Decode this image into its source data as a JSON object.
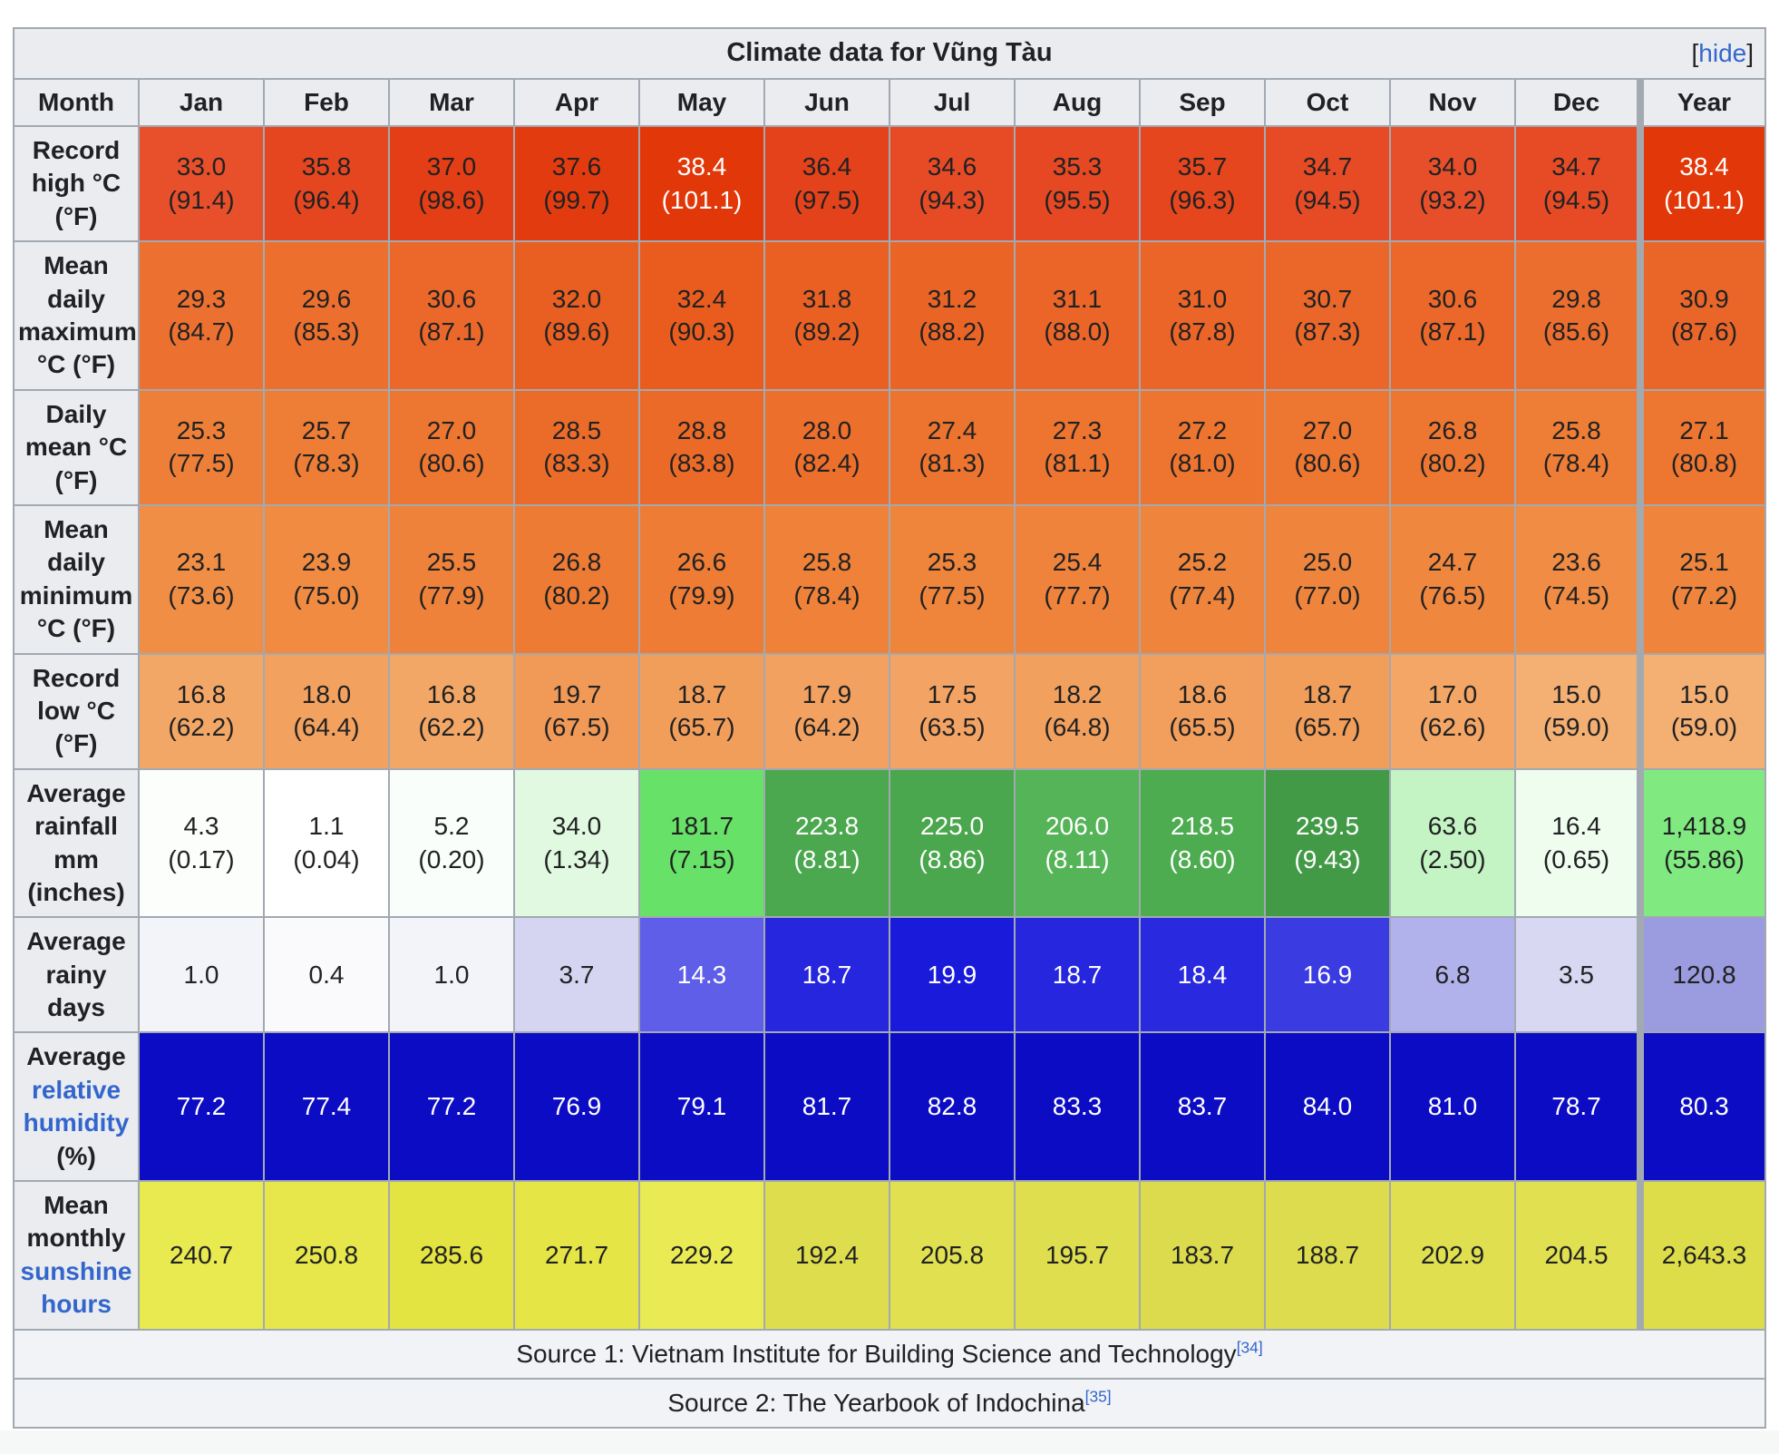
{
  "table": {
    "title": "Climate data for Vũng Tàu",
    "hide": {
      "open": "[",
      "label": "hide",
      "close": "]"
    },
    "header": [
      "Month",
      "Jan",
      "Feb",
      "Mar",
      "Apr",
      "May",
      "Jun",
      "Jul",
      "Aug",
      "Sep",
      "Oct",
      "Nov",
      "Dec",
      "Year"
    ],
    "rows": [
      {
        "key": "record-high",
        "label_parts": [
          {
            "text": "Record high °C (°F)"
          }
        ],
        "cells": [
          {
            "t": "33.0",
            "s": "(91.4)",
            "bg": "#E8502B"
          },
          {
            "t": "35.8",
            "s": "(96.4)",
            "bg": "#E54620"
          },
          {
            "t": "37.0",
            "s": "(98.6)",
            "bg": "#E33E15"
          },
          {
            "t": "37.6",
            "s": "(99.7)",
            "bg": "#E33B10"
          },
          {
            "t": "38.4",
            "s": "(101.1)",
            "bg": "#E23708",
            "fg": "#ffffff"
          },
          {
            "t": "36.4",
            "s": "(97.5)",
            "bg": "#E4421B"
          },
          {
            "t": "34.6",
            "s": "(94.3)",
            "bg": "#E64B26"
          },
          {
            "t": "35.3",
            "s": "(95.5)",
            "bg": "#E54822"
          },
          {
            "t": "35.7",
            "s": "(96.3)",
            "bg": "#E5461E"
          },
          {
            "t": "34.7",
            "s": "(94.5)",
            "bg": "#E64B25"
          },
          {
            "t": "34.0",
            "s": "(93.2)",
            "bg": "#E74F2A"
          },
          {
            "t": "34.7",
            "s": "(94.5)",
            "bg": "#E64B25"
          },
          {
            "t": "38.4",
            "s": "(101.1)",
            "bg": "#E23708",
            "fg": "#ffffff"
          }
        ]
      },
      {
        "key": "mean-daily-maximum",
        "label_parts": [
          {
            "text": "Mean daily maximum °C (°F)"
          }
        ],
        "cells": [
          {
            "t": "29.3",
            "s": "(84.7)",
            "bg": "#EC702F"
          },
          {
            "t": "29.6",
            "s": "(85.3)",
            "bg": "#EC6F2E"
          },
          {
            "t": "30.6",
            "s": "(87.1)",
            "bg": "#EB682A"
          },
          {
            "t": "32.0",
            "s": "(89.6)",
            "bg": "#E95E21"
          },
          {
            "t": "32.4",
            "s": "(90.3)",
            "bg": "#E95C1E"
          },
          {
            "t": "31.8",
            "s": "(89.2)",
            "bg": "#EA6023"
          },
          {
            "t": "31.2",
            "s": "(88.2)",
            "bg": "#EA6426"
          },
          {
            "t": "31.1",
            "s": "(88.0)",
            "bg": "#EA6527"
          },
          {
            "t": "31.0",
            "s": "(87.8)",
            "bg": "#EA6527"
          },
          {
            "t": "30.7",
            "s": "(87.3)",
            "bg": "#EB6729"
          },
          {
            "t": "30.6",
            "s": "(87.1)",
            "bg": "#EB682A"
          },
          {
            "t": "29.8",
            "s": "(85.6)",
            "bg": "#EC6E2E"
          },
          {
            "t": "30.9",
            "s": "(87.6)",
            "bg": "#EA6628"
          }
        ]
      },
      {
        "key": "daily-mean",
        "label_parts": [
          {
            "text": "Daily mean °C (°F)"
          }
        ],
        "cells": [
          {
            "t": "25.3",
            "s": "(77.5)",
            "bg": "#EE7F38"
          },
          {
            "t": "25.7",
            "s": "(78.3)",
            "bg": "#EE7D36"
          },
          {
            "t": "27.0",
            "s": "(80.6)",
            "bg": "#ED7630"
          },
          {
            "t": "28.5",
            "s": "(83.3)",
            "bg": "#EB6C29"
          },
          {
            "t": "28.8",
            "s": "(83.8)",
            "bg": "#EB6A27"
          },
          {
            "t": "28.0",
            "s": "(82.4)",
            "bg": "#EC6F2B"
          },
          {
            "t": "27.4",
            "s": "(81.3)",
            "bg": "#ED742E"
          },
          {
            "t": "27.3",
            "s": "(81.1)",
            "bg": "#ED752F"
          },
          {
            "t": "27.2",
            "s": "(81.0)",
            "bg": "#ED752F"
          },
          {
            "t": "27.0",
            "s": "(80.6)",
            "bg": "#ED7630"
          },
          {
            "t": "26.8",
            "s": "(80.2)",
            "bg": "#ED7731"
          },
          {
            "t": "25.8",
            "s": "(78.4)",
            "bg": "#EE7D36"
          },
          {
            "t": "27.1",
            "s": "(80.8)",
            "bg": "#ED7630"
          }
        ]
      },
      {
        "key": "mean-daily-minimum",
        "label_parts": [
          {
            "text": "Mean daily minimum °C (°F)"
          }
        ],
        "cells": [
          {
            "t": "23.1",
            "s": "(73.6)",
            "bg": "#F08E45"
          },
          {
            "t": "23.9",
            "s": "(75.0)",
            "bg": "#F08B41"
          },
          {
            "t": "25.5",
            "s": "(77.9)",
            "bg": "#EF823A"
          },
          {
            "t": "26.8",
            "s": "(80.2)",
            "bg": "#ED7B34"
          },
          {
            "t": "26.6",
            "s": "(79.9)",
            "bg": "#EE7C35"
          },
          {
            "t": "25.8",
            "s": "(78.4)",
            "bg": "#EF8139"
          },
          {
            "t": "25.3",
            "s": "(77.5)",
            "bg": "#EF843B"
          },
          {
            "t": "25.4",
            "s": "(77.7)",
            "bg": "#EF833B"
          },
          {
            "t": "25.2",
            "s": "(77.4)",
            "bg": "#EF843C"
          },
          {
            "t": "25.0",
            "s": "(77.0)",
            "bg": "#EF853D"
          },
          {
            "t": "24.7",
            "s": "(76.5)",
            "bg": "#F0873F"
          },
          {
            "t": "23.6",
            "s": "(74.5)",
            "bg": "#F08C43"
          },
          {
            "t": "25.1",
            "s": "(77.2)",
            "bg": "#EF853C"
          }
        ]
      },
      {
        "key": "record-low",
        "label_parts": [
          {
            "text": "Record low °C (°F)"
          }
        ],
        "cells": [
          {
            "t": "16.8",
            "s": "(62.2)",
            "bg": "#F3A766"
          },
          {
            "t": "18.0",
            "s": "(64.4)",
            "bg": "#F2A15F"
          },
          {
            "t": "16.8",
            "s": "(62.2)",
            "bg": "#F3A766"
          },
          {
            "t": "19.7",
            "s": "(67.5)",
            "bg": "#F19956"
          },
          {
            "t": "18.7",
            "s": "(65.7)",
            "bg": "#F29E5B"
          },
          {
            "t": "17.9",
            "s": "(64.2)",
            "bg": "#F2A160"
          },
          {
            "t": "17.5",
            "s": "(63.5)",
            "bg": "#F3A363"
          },
          {
            "t": "18.2",
            "s": "(64.8)",
            "bg": "#F2A05D"
          },
          {
            "t": "18.6",
            "s": "(65.5)",
            "bg": "#F29E5C"
          },
          {
            "t": "18.7",
            "s": "(65.7)",
            "bg": "#F29E5B"
          },
          {
            "t": "17.0",
            "s": "(62.6)",
            "bg": "#F3A665"
          },
          {
            "t": "15.0",
            "s": "(59.0)",
            "bg": "#F4AF73"
          },
          {
            "t": "15.0",
            "s": "(59.0)",
            "bg": "#F4AF73"
          }
        ]
      },
      {
        "key": "average-rainfall",
        "label_parts": [
          {
            "text": "Average rainfall mm (inches)"
          }
        ],
        "cells": [
          {
            "t": "4.3",
            "s": "(0.17)",
            "bg": "#FBFEFB"
          },
          {
            "t": "1.1",
            "s": "(0.04)",
            "bg": "#FEFFFE"
          },
          {
            "t": "5.2",
            "s": "(0.20)",
            "bg": "#FAFEFA"
          },
          {
            "t": "34.0",
            "s": "(1.34)",
            "bg": "#E0F9E0"
          },
          {
            "t": "181.7",
            "s": "(7.15)",
            "bg": "#68E168"
          },
          {
            "t": "223.8",
            "s": "(8.81)",
            "bg": "#4BA84E",
            "fg": "#ffffff"
          },
          {
            "t": "225.0",
            "s": "(8.86)",
            "bg": "#4AA74D",
            "fg": "#ffffff"
          },
          {
            "t": "206.0",
            "s": "(8.11)",
            "bg": "#55B457",
            "fg": "#ffffff"
          },
          {
            "t": "218.5",
            "s": "(8.60)",
            "bg": "#4DAB50",
            "fg": "#ffffff"
          },
          {
            "t": "239.5",
            "s": "(9.43)",
            "bg": "#429A46",
            "fg": "#ffffff"
          },
          {
            "t": "63.6",
            "s": "(2.50)",
            "bg": "#C4F4C4"
          },
          {
            "t": "16.4",
            "s": "(0.65)",
            "bg": "#EFFDEF"
          },
          {
            "t": "1,418.9",
            "s": "(55.86)",
            "bg": "#80EA80"
          }
        ]
      },
      {
        "key": "average-rainy-days",
        "label_parts": [
          {
            "text": "Average rainy days"
          }
        ],
        "cells": [
          {
            "t": "1.0",
            "bg": "#F3F3FA"
          },
          {
            "t": "0.4",
            "bg": "#FAFAFD"
          },
          {
            "t": "1.0",
            "bg": "#F3F3FA"
          },
          {
            "t": "3.7",
            "bg": "#D5D5F1"
          },
          {
            "t": "14.3",
            "bg": "#5E5EE8",
            "fg": "#ffffff"
          },
          {
            "t": "18.7",
            "bg": "#2626DE",
            "fg": "#ffffff"
          },
          {
            "t": "19.9",
            "bg": "#1A1ADB",
            "fg": "#ffffff"
          },
          {
            "t": "18.7",
            "bg": "#2626DE",
            "fg": "#ffffff"
          },
          {
            "t": "18.4",
            "bg": "#2929DF",
            "fg": "#ffffff"
          },
          {
            "t": "16.9",
            "bg": "#3B3BE2",
            "fg": "#ffffff"
          },
          {
            "t": "6.8",
            "bg": "#B1B1EB"
          },
          {
            "t": "3.5",
            "bg": "#D8D8F3"
          },
          {
            "t": "120.8",
            "bg": "#9B9BDF"
          }
        ]
      },
      {
        "key": "average-relative-humidity",
        "label_parts": [
          {
            "text": "Average "
          },
          {
            "text": "relative humidity",
            "link": true
          },
          {
            "text": " (%)"
          }
        ],
        "cells": [
          {
            "t": "77.2",
            "bg": "#0C0CC4",
            "fg": "#ffffff"
          },
          {
            "t": "77.4",
            "bg": "#0C0CC4",
            "fg": "#ffffff"
          },
          {
            "t": "77.2",
            "bg": "#0C0CC4",
            "fg": "#ffffff"
          },
          {
            "t": "76.9",
            "bg": "#0C0CC4",
            "fg": "#ffffff"
          },
          {
            "t": "79.1",
            "bg": "#0C0CC4",
            "fg": "#ffffff"
          },
          {
            "t": "81.7",
            "bg": "#0C0CC4",
            "fg": "#ffffff"
          },
          {
            "t": "82.8",
            "bg": "#0C0CC4",
            "fg": "#ffffff"
          },
          {
            "t": "83.3",
            "bg": "#0C0CC4",
            "fg": "#ffffff"
          },
          {
            "t": "83.7",
            "bg": "#0C0CC4",
            "fg": "#ffffff"
          },
          {
            "t": "84.0",
            "bg": "#0C0CC4",
            "fg": "#ffffff"
          },
          {
            "t": "81.0",
            "bg": "#0C0CC4",
            "fg": "#ffffff"
          },
          {
            "t": "78.7",
            "bg": "#0C0CC4",
            "fg": "#ffffff"
          },
          {
            "t": "80.3",
            "bg": "#0C0CC4",
            "fg": "#ffffff"
          }
        ]
      },
      {
        "key": "mean-monthly-sunshine-hours",
        "label_parts": [
          {
            "text": "Mean monthly "
          },
          {
            "text": "sunshine hours",
            "link": true
          }
        ],
        "cells": [
          {
            "t": "240.7",
            "bg": "#E9E950"
          },
          {
            "t": "250.8",
            "bg": "#E7E74C"
          },
          {
            "t": "285.6",
            "bg": "#E3E341"
          },
          {
            "t": "271.7",
            "bg": "#E5E546"
          },
          {
            "t": "229.2",
            "bg": "#EAEA54"
          },
          {
            "t": "192.4",
            "bg": "#DDDD4E"
          },
          {
            "t": "205.8",
            "bg": "#E0E050"
          },
          {
            "t": "195.7",
            "bg": "#DEDE4F"
          },
          {
            "t": "183.7",
            "bg": "#DBDB4D"
          },
          {
            "t": "188.7",
            "bg": "#DCDC4E"
          },
          {
            "t": "202.9",
            "bg": "#DFDF50"
          },
          {
            "t": "204.5",
            "bg": "#E0E050"
          },
          {
            "t": "2,643.3",
            "bg": "#DDDD49"
          }
        ]
      }
    ],
    "sources": [
      {
        "prefix": "Source 1: Vietnam Institute for Building Science and Technology",
        "ref": "[34]"
      },
      {
        "prefix": "Source 2: The Yearbook of Indochina",
        "ref": "[35]"
      }
    ]
  },
  "colors": {
    "link": "#3366cc",
    "border": "#a2a9b1",
    "header_bg": "#eaecf0",
    "source_bg": "#f2f3f6",
    "text": "#202122",
    "humidity_blue": "#0C0CC4"
  },
  "chart_data": {
    "type": "table",
    "title": "Climate data for Vũng Tàu",
    "categories": [
      "Jan",
      "Feb",
      "Mar",
      "Apr",
      "May",
      "Jun",
      "Jul",
      "Aug",
      "Sep",
      "Oct",
      "Nov",
      "Dec"
    ],
    "series": [
      {
        "name": "Record high °C",
        "values": [
          33.0,
          35.8,
          37.0,
          37.6,
          38.4,
          36.4,
          34.6,
          35.3,
          35.7,
          34.7,
          34.0,
          34.7
        ],
        "year": 38.4
      },
      {
        "name": "Record high °F",
        "values": [
          91.4,
          96.4,
          98.6,
          99.7,
          101.1,
          97.5,
          94.3,
          95.5,
          96.3,
          94.5,
          93.2,
          94.5
        ],
        "year": 101.1
      },
      {
        "name": "Mean daily maximum °C",
        "values": [
          29.3,
          29.6,
          30.6,
          32.0,
          32.4,
          31.8,
          31.2,
          31.1,
          31.0,
          30.7,
          30.6,
          29.8
        ],
        "year": 30.9
      },
      {
        "name": "Mean daily maximum °F",
        "values": [
          84.7,
          85.3,
          87.1,
          89.6,
          90.3,
          89.2,
          88.2,
          88.0,
          87.8,
          87.3,
          87.1,
          85.6
        ],
        "year": 87.6
      },
      {
        "name": "Daily mean °C",
        "values": [
          25.3,
          25.7,
          27.0,
          28.5,
          28.8,
          28.0,
          27.4,
          27.3,
          27.2,
          27.0,
          26.8,
          25.8
        ],
        "year": 27.1
      },
      {
        "name": "Daily mean °F",
        "values": [
          77.5,
          78.3,
          80.6,
          83.3,
          83.8,
          82.4,
          81.3,
          81.1,
          81.0,
          80.6,
          80.2,
          78.4
        ],
        "year": 80.8
      },
      {
        "name": "Mean daily minimum °C",
        "values": [
          23.1,
          23.9,
          25.5,
          26.8,
          26.6,
          25.8,
          25.3,
          25.4,
          25.2,
          25.0,
          24.7,
          23.6
        ],
        "year": 25.1
      },
      {
        "name": "Mean daily minimum °F",
        "values": [
          73.6,
          75.0,
          77.9,
          80.2,
          79.9,
          78.4,
          77.5,
          77.7,
          77.4,
          77.0,
          76.5,
          74.5
        ],
        "year": 77.2
      },
      {
        "name": "Record low °C",
        "values": [
          16.8,
          18.0,
          16.8,
          19.7,
          18.7,
          17.9,
          17.5,
          18.2,
          18.6,
          18.7,
          17.0,
          15.0
        ],
        "year": 15.0
      },
      {
        "name": "Record low °F",
        "values": [
          62.2,
          64.4,
          62.2,
          67.5,
          65.7,
          64.2,
          63.5,
          64.8,
          65.5,
          65.7,
          62.6,
          59.0
        ],
        "year": 59.0
      },
      {
        "name": "Average rainfall mm",
        "values": [
          4.3,
          1.1,
          5.2,
          34.0,
          181.7,
          223.8,
          225.0,
          206.0,
          218.5,
          239.5,
          63.6,
          16.4
        ],
        "year": 1418.9
      },
      {
        "name": "Average rainfall inches",
        "values": [
          0.17,
          0.04,
          0.2,
          1.34,
          7.15,
          8.81,
          8.86,
          8.11,
          8.6,
          9.43,
          2.5,
          0.65
        ],
        "year": 55.86
      },
      {
        "name": "Average rainy days",
        "values": [
          1.0,
          0.4,
          1.0,
          3.7,
          14.3,
          18.7,
          19.9,
          18.7,
          18.4,
          16.9,
          6.8,
          3.5
        ],
        "year": 120.8
      },
      {
        "name": "Average relative humidity %",
        "values": [
          77.2,
          77.4,
          77.2,
          76.9,
          79.1,
          81.7,
          82.8,
          83.3,
          83.7,
          84.0,
          81.0,
          78.7
        ],
        "year": 80.3
      },
      {
        "name": "Mean monthly sunshine hours",
        "values": [
          240.7,
          250.8,
          285.6,
          271.7,
          229.2,
          192.4,
          205.8,
          195.7,
          183.7,
          188.7,
          202.9,
          204.5
        ],
        "year": 2643.3
      }
    ],
    "notes": [
      "Source 1: Vietnam Institute for Building Science and Technology[34]",
      "Source 2: The Yearbook of Indochina[35]"
    ]
  }
}
